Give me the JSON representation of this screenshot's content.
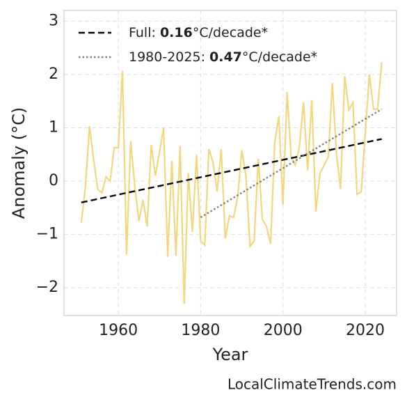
{
  "chart_data": {
    "type": "line",
    "x_label": "Year",
    "y_label": "Anomaly (°C)",
    "footer": "LocalClimateTrends.com",
    "xlim": [
      1946.8,
      2027.6
    ],
    "ylim": [
      -2.52,
      3.2
    ],
    "xticks": [
      1960,
      1980,
      2000,
      2020
    ],
    "yticks": [
      {
        "value": -2,
        "label": "−2"
      },
      {
        "value": -1,
        "label": "−1"
      },
      0,
      1,
      2,
      3
    ],
    "grid": true,
    "legend": "upper left",
    "series": [
      {
        "color": "#f2d77e",
        "x": [
          1951,
          1952,
          1953,
          1954,
          1955,
          1956,
          1957,
          1958,
          1959,
          1960,
          1961,
          1962,
          1963,
          1964,
          1965,
          1966,
          1967,
          1968,
          1969,
          1970,
          1971,
          1972,
          1973,
          1974,
          1975,
          1976,
          1977,
          1978,
          1979,
          1980,
          1981,
          1982,
          1983,
          1984,
          1985,
          1986,
          1987,
          1988,
          1989,
          1990,
          1991,
          1992,
          1993,
          1994,
          1995,
          1996,
          1997,
          1998,
          1999,
          2000,
          2001,
          2002,
          2003,
          2004,
          2005,
          2006,
          2007,
          2008,
          2009,
          2010,
          2011,
          2012,
          2013,
          2014,
          2015,
          2016,
          2017,
          2018,
          2019,
          2020,
          2021,
          2022,
          2023,
          2024
        ],
        "values": [
          -0.78,
          -0.1,
          1.03,
          0.4,
          -0.15,
          -0.22,
          0.08,
          0.0,
          0.63,
          0.62,
          2.07,
          -1.38,
          0.75,
          -0.1,
          -0.75,
          -0.35,
          -0.85,
          0.68,
          0.1,
          0.55,
          1.0,
          -1.42,
          0.38,
          -1.4,
          0.66,
          -2.3,
          0.15,
          -0.95,
          0.5,
          -1.12,
          -1.2,
          0.6,
          0.35,
          -0.2,
          0.6,
          -1.08,
          -0.65,
          -0.68,
          -0.3,
          0.58,
          0.1,
          -1.22,
          -1.12,
          0.42,
          -0.72,
          -0.85,
          -1.18,
          0.72,
          1.22,
          -0.45,
          1.67,
          0.45,
          0.3,
          0.65,
          1.48,
          0.2,
          1.52,
          -0.57,
          0.15,
          0.3,
          0.45,
          1.84,
          0.5,
          -0.15,
          1.97,
          1.33,
          1.48,
          -0.25,
          -0.2,
          0.9,
          2.0,
          1.35,
          1.35,
          2.23
        ]
      },
      {
        "name": [
          "Full: ",
          "0.16",
          "°C/decade*"
        ],
        "color": "#000000",
        "dash": "9 5",
        "x": [
          1951,
          2024
        ],
        "values": [
          -0.4,
          0.79
        ]
      },
      {
        "name": [
          "1980-2025: ",
          "0.47",
          "°C/decade*"
        ],
        "color": "#808080",
        "dash": "2.5 3",
        "x": [
          1980,
          2024
        ],
        "values": [
          -0.68,
          1.35
        ]
      }
    ]
  }
}
